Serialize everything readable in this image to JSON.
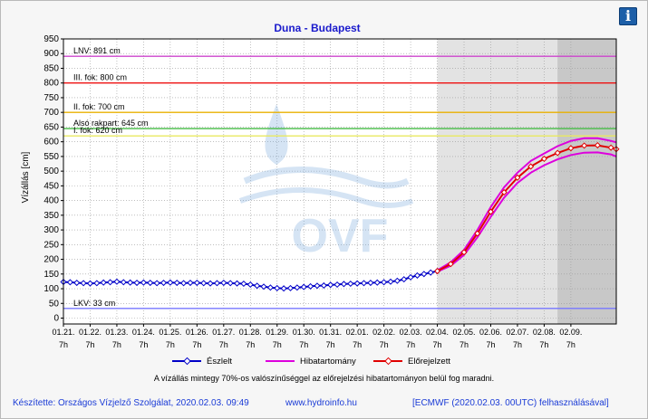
{
  "title": "Duna - Budapest",
  "ylabel": "Vízállás [cm]",
  "info_icon": "info-icon",
  "note": "A vízállás mintegy 70%-os valószínűséggel az előrejelzési hibatartományon belül fog maradni.",
  "footer": {
    "left": "Készítette: Országos Vízjelző Szolgálat, 2020.02.03. 09:49",
    "middle": "www.hydroinfo.hu",
    "right": "[ECMWF (2020.02.03. 00UTC) felhasználásával]"
  },
  "watermark": "OVF",
  "colors": {
    "observed": "#0000c8",
    "error_band": "#dd00dd",
    "forecast": "#e00000",
    "lnv": "#cc44cc",
    "fok3": "#ee1111",
    "fok2": "#e8b000",
    "rakpart": "#44bb44",
    "fok1": "#e8e860",
    "lkv": "#7777ff"
  },
  "chart_data": {
    "type": "line",
    "title": "Duna - Budapest",
    "ylabel": "Vízállás [cm]",
    "ylim": [
      -20,
      950
    ],
    "yticks": [
      0,
      50,
      100,
      150,
      200,
      250,
      300,
      350,
      400,
      450,
      500,
      550,
      600,
      650,
      700,
      750,
      800,
      850,
      900,
      950
    ],
    "xlim": [
      0,
      20.7
    ],
    "x_unit": "days from 01.21 07h",
    "xticks": [
      {
        "day": "01.21.",
        "hour": "7h"
      },
      {
        "day": "01.22.",
        "hour": "7h"
      },
      {
        "day": "01.23.",
        "hour": "7h"
      },
      {
        "day": "01.24.",
        "hour": "7h"
      },
      {
        "day": "01.25.",
        "hour": "7h"
      },
      {
        "day": "01.26.",
        "hour": "7h"
      },
      {
        "day": "01.27.",
        "hour": "7h"
      },
      {
        "day": "01.28.",
        "hour": "7h"
      },
      {
        "day": "01.29.",
        "hour": "7h"
      },
      {
        "day": "01.30.",
        "hour": "7h"
      },
      {
        "day": "01.31.",
        "hour": "7h"
      },
      {
        "day": "02.01.",
        "hour": "7h"
      },
      {
        "day": "02.02.",
        "hour": "7h"
      },
      {
        "day": "02.03.",
        "hour": "7h"
      },
      {
        "day": "02.04.",
        "hour": "7h"
      },
      {
        "day": "02.05.",
        "hour": "7h"
      },
      {
        "day": "02.06.",
        "hour": "7h"
      },
      {
        "day": "02.07.",
        "hour": "7h"
      },
      {
        "day": "02.08.",
        "hour": "7h"
      },
      {
        "day": "02.09.",
        "hour": "7h"
      }
    ],
    "grid": true,
    "forecast_shading": {
      "start": 14.0,
      "end": 20.7,
      "dark_start": 18.5
    },
    "reference_lines": [
      {
        "label": "LNV: 891 cm",
        "value": 891,
        "color": "#cc44cc"
      },
      {
        "label": "III. fok: 800 cm",
        "value": 800,
        "color": "#ee1111"
      },
      {
        "label": "II. fok: 700 cm",
        "value": 700,
        "color": "#e8b000"
      },
      {
        "label": "Alsó rakpart: 645 cm",
        "value": 645,
        "color": "#44bb44"
      },
      {
        "label": "I. fok: 620 cm",
        "value": 620,
        "color": "#e8e860"
      },
      {
        "label": "LKV: 33 cm",
        "value": 33,
        "color": "#7777ff"
      }
    ],
    "legend": [
      "Észlelt",
      "Hibatartomány",
      "Előrejelzett"
    ],
    "series": [
      {
        "name": "Észlelt",
        "x": [
          0,
          0.25,
          0.5,
          0.75,
          1,
          1.25,
          1.5,
          1.75,
          2,
          2.25,
          2.5,
          2.75,
          3,
          3.25,
          3.5,
          3.75,
          4,
          4.25,
          4.5,
          4.75,
          5,
          5.25,
          5.5,
          5.75,
          6,
          6.25,
          6.5,
          6.75,
          7,
          7.25,
          7.5,
          7.75,
          8,
          8.25,
          8.5,
          8.75,
          9,
          9.25,
          9.5,
          9.75,
          10,
          10.25,
          10.5,
          10.75,
          11,
          11.25,
          11.5,
          11.75,
          12,
          12.25,
          12.5,
          12.75,
          13,
          13.25,
          13.5,
          13.75,
          14
        ],
        "y": [
          123,
          122,
          120,
          119,
          118,
          119,
          121,
          122,
          124,
          122,
          121,
          120,
          121,
          120,
          119,
          120,
          121,
          120,
          119,
          120,
          120,
          119,
          118,
          119,
          120,
          119,
          118,
          117,
          114,
          110,
          107,
          104,
          102,
          101,
          102,
          104,
          106,
          108,
          110,
          111,
          113,
          114,
          116,
          117,
          118,
          119,
          120,
          121,
          122,
          124,
          127,
          132,
          139,
          145,
          150,
          155,
          160
        ]
      },
      {
        "name": "Hibatartomány",
        "x": [
          14,
          14.5,
          15,
          15.5,
          16,
          16.5,
          17,
          17.5,
          18,
          18.5,
          19,
          19.5,
          20,
          20.5,
          20.7
        ],
        "y": [
          163,
          190,
          232,
          300,
          378,
          445,
          495,
          535,
          560,
          585,
          603,
          612,
          612,
          603,
          598
        ]
      },
      {
        "name": "Hibatartomány",
        "x": [
          14,
          14.5,
          15,
          15.5,
          16,
          16.5,
          17,
          17.5,
          18,
          18.5,
          19,
          19.5,
          20,
          20.5,
          20.7
        ],
        "y": [
          158,
          178,
          215,
          275,
          345,
          410,
          460,
          495,
          520,
          540,
          555,
          563,
          564,
          557,
          550
        ]
      },
      {
        "name": "Előrejelzett",
        "x": [
          14,
          14.5,
          15,
          15.5,
          16,
          16.5,
          17,
          17.5,
          18,
          18.5,
          19,
          19.5,
          20,
          20.5,
          20.7
        ],
        "y": [
          160,
          184,
          224,
          288,
          362,
          428,
          478,
          516,
          542,
          562,
          578,
          587,
          588,
          580,
          575
        ]
      }
    ]
  }
}
